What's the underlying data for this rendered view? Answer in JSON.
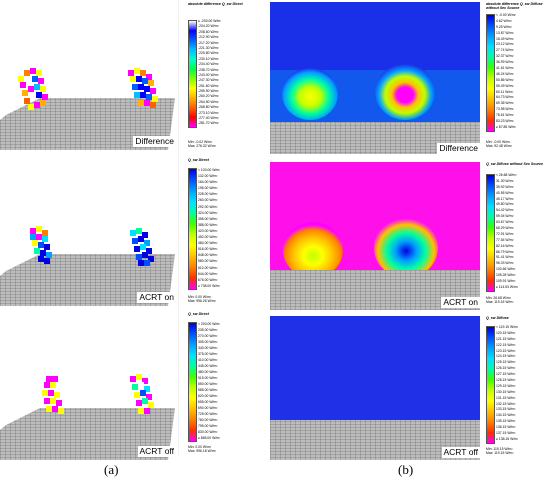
{
  "columns": [
    {
      "caption": "(a)",
      "panels": [
        {
          "label": "Difference",
          "legend": {
            "title": "absolute difference Q_sw Direct",
            "unit": "W/m²",
            "labels": [
              "≤ -200.00",
              "-204.20",
              "-208.60",
              "-212.90",
              "-217.20",
              "-221.30",
              "-225.80",
              "-230.10",
              "-234.40",
              "-238.70",
              "-243.00",
              "-247.30",
              "-251.60",
              "-255.90",
              "-260.20",
              "-264.50",
              "-268.80",
              "-273.10",
              "-277.40",
              "-281.70"
            ],
            "stats": [
              "Min: -0.02 W/m²",
              "Max: 276.32 W/m²"
            ],
            "colors": [
              "#ffffff",
              "#0000ff",
              "#0060ff",
              "#00c0ff",
              "#00ffcc",
              "#00ff40",
              "#80ff00",
              "#ffff00",
              "#ffb000",
              "#ff6000",
              "#ff0000",
              "#ff00ff"
            ]
          }
        },
        {
          "label": "ACRT on",
          "legend": {
            "title": "Q_sw Direct",
            "unit": "W/m²",
            "labels": [
              "< 100.00",
              "132.00",
              "164.00",
              "196.00",
              "228.00",
              "260.00",
              "292.00",
              "324.00",
              "356.00",
              "388.00",
              "420.00",
              "452.00",
              "484.00",
              "516.00",
              "548.00",
              "580.00",
              "612.00",
              "644.00",
              "676.00",
              "≥ 708.00"
            ],
            "stats": [
              "Min: 0.00 W/m²",
              "Max: 996.26 W/m²"
            ],
            "colors": [
              "#0000e0",
              "#0050ff",
              "#00a0ff",
              "#00e0ff",
              "#00ffa0",
              "#40ff00",
              "#c0ff00",
              "#ffff00",
              "#ffc000",
              "#ff8000",
              "#ff3000",
              "#ff00ff"
            ]
          }
        },
        {
          "label": "ACRT off",
          "legend": {
            "title": "Q_sw Direct",
            "unit": "W/m²",
            "labels": [
              "< 200.00",
              "235.00",
              "270.00",
              "305.00",
              "340.00",
              "375.00",
              "410.00",
              "445.00",
              "480.00",
              "515.00",
              "550.00",
              "585.00",
              "620.00",
              "655.00",
              "690.00",
              "725.00",
              "760.00",
              "795.00",
              "830.00",
              "≥ 865.00"
            ],
            "stats": [
              "Min: 0.00 W/m²",
              "Max: 996.18 W/m²"
            ],
            "colors": [
              "#0000e0",
              "#0050ff",
              "#00a0ff",
              "#00e0ff",
              "#00ffa0",
              "#40ff00",
              "#c0ff00",
              "#ffff00",
              "#ffc000",
              "#ff8000",
              "#ff3000",
              "#ff00ff"
            ]
          }
        }
      ]
    },
    {
      "caption": "(b)",
      "panels": [
        {
          "label": "Difference",
          "legend": {
            "title": "absolute difference Q_sw Diffuse without Sec Source",
            "unit": "W/m²",
            "labels": [
              "< -0.00",
              "4.62",
              "9.25",
              "13.87",
              "18.49",
              "23.12",
              "27.74",
              "32.37",
              "36.99",
              "41.61",
              "46.24",
              "50.86",
              "55.49",
              "60.11",
              "64.73",
              "69.36",
              "73.98",
              "78.61",
              "83.23",
              "≥ 87.85"
            ],
            "stats": [
              "Min: -0.00 W/m²",
              "Max: 92.48 W/m²"
            ],
            "colors": [
              "#0000e0",
              "#0050ff",
              "#00a0ff",
              "#00e0ff",
              "#00ffa0",
              "#40ff00",
              "#c0ff00",
              "#ffff00",
              "#ffc000",
              "#ff8000",
              "#ff3000",
              "#ff00ff"
            ]
          }
        },
        {
          "label": "ACRT on",
          "legend": {
            "title": "Q_sw Diffuse without Sec Source",
            "unit": "W/m²",
            "labels": [
              "< 26.68",
              "31.30",
              "35.92",
              "40.55",
              "45.17",
              "49.80",
              "54.42",
              "59.04",
              "63.67",
              "68.29",
              "72.91",
              "77.54",
              "82.16",
              "86.79",
              "91.41",
              "96.03",
              "100.66",
              "105.28",
              "109.91",
              "≥ 114.53"
            ],
            "stats": [
              "Min: 26.68 W/m²",
              "Max: 119.15 W/m²"
            ],
            "colors": [
              "#0000e0",
              "#0050ff",
              "#00a0ff",
              "#00e0ff",
              "#00ffa0",
              "#40ff00",
              "#c0ff00",
              "#ffff00",
              "#ffc000",
              "#ff8000",
              "#ff3000",
              "#ff00ff"
            ]
          }
        },
        {
          "label": "ACRT off",
          "legend": {
            "title": "Q_sw Diffuse",
            "unit": "W/m²",
            "labels": [
              "< 119.15",
              "120.15",
              "121.15",
              "122.15",
              "123.15",
              "124.15",
              "125.15",
              "126.15",
              "127.15",
              "128.15",
              "129.15",
              "130.15",
              "131.15",
              "132.15",
              "133.15",
              "134.15",
              "135.15",
              "136.15",
              "137.15",
              "≥ 138.15"
            ],
            "stats": [
              "Min: 119.15 W/m²",
              "Max: 119.15 W/m²"
            ],
            "colors": [
              "#0000e0",
              "#0050ff",
              "#00a0ff",
              "#00e0ff",
              "#00ffa0",
              "#40ff00",
              "#c0ff00",
              "#ffff00",
              "#ffc000",
              "#ff8000",
              "#ff3000",
              "#ff00ff"
            ]
          }
        }
      ]
    }
  ]
}
